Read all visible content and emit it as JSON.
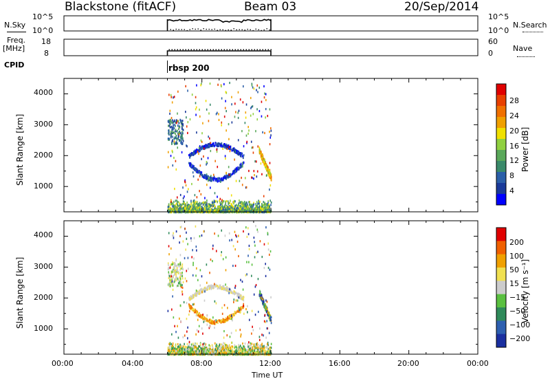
{
  "header": {
    "station": "Blackstone (fitACF)",
    "beam": "Beam 03",
    "date": "20/Sep/2014"
  },
  "noise_panel": {
    "left_label": "N.Sky",
    "right_label": "N.Search",
    "left_ticks": [
      "10^5",
      "10^0"
    ],
    "right_ticks": [
      "10^5",
      "10^0"
    ]
  },
  "freq_panel": {
    "left_label_1": "Freq.",
    "left_label_2": "[MHz]",
    "right_label": "Nave",
    "left_ticks": [
      "18",
      "8"
    ],
    "right_ticks": [
      "60",
      "0"
    ]
  },
  "cpid": {
    "label": "CPID",
    "program": "rbsp 200"
  },
  "power_panel": {
    "ylabel": "Slant Range [km]",
    "yticks": [
      "4000",
      "3000",
      "2000",
      "1000"
    ],
    "colorbar_label": "Power [dB]",
    "colorbar_ticks": [
      "28",
      "24",
      "20",
      "16",
      "12",
      "8",
      "4"
    ],
    "colors": [
      "#0000ff",
      "#1a3a9a",
      "#2b5fa8",
      "#3a8a6a",
      "#5aa85a",
      "#90d040",
      "#f0e000",
      "#f0a000",
      "#f07000",
      "#e84000",
      "#e00000"
    ]
  },
  "velocity_panel": {
    "ylabel": "Slant Range [km]",
    "yticks": [
      "4000",
      "3000",
      "2000",
      "1000"
    ],
    "colorbar_label": "Velocity [m s⁻¹]",
    "colorbar_ticks": [
      "200",
      "100",
      "50",
      "15",
      "−15",
      "−50",
      "−100",
      "−200"
    ],
    "colors": [
      "#1a2fa0",
      "#2d5fb0",
      "#2f8a5a",
      "#5ac040",
      "#cccccc",
      "#f0e050",
      "#f0a000",
      "#f06000",
      "#e00000"
    ]
  },
  "xaxis": {
    "ticks": [
      "00:00",
      "04:00",
      "08:00",
      "12:00",
      "16:00",
      "20:00",
      "00:00"
    ],
    "label": "Time UT"
  },
  "chart_data": {
    "type": "heatmap",
    "title": "Blackstone (fitACF)  Beam 03  20/Sep/2014",
    "xlabel": "Time UT",
    "ylabel": "Slant Range [km]",
    "xlim": [
      0,
      24
    ],
    "ylim": [
      180,
      4500
    ],
    "data_window_hours": [
      6.0,
      12.0
    ],
    "series": [
      {
        "name": "Power [dB]",
        "range": [
          0,
          30
        ]
      },
      {
        "name": "Velocity [m s⁻¹]",
        "range": [
          -250,
          250
        ]
      }
    ],
    "features": [
      {
        "time_h": [
          6.0,
          12.0
        ],
        "range_km": [
          200,
          500
        ],
        "note": "ground scatter band"
      },
      {
        "time_h": [
          6.0,
          7.0
        ],
        "range_km": [
          2400,
          3200
        ],
        "note": "echo patch"
      },
      {
        "time_h": [
          8.5,
          10.5
        ],
        "range_km": [
          2200,
          2500
        ],
        "note": "arc upper"
      },
      {
        "time_h": [
          8.5,
          10.5
        ],
        "range_km": [
          1100,
          1400
        ],
        "note": "arc lower"
      }
    ]
  }
}
